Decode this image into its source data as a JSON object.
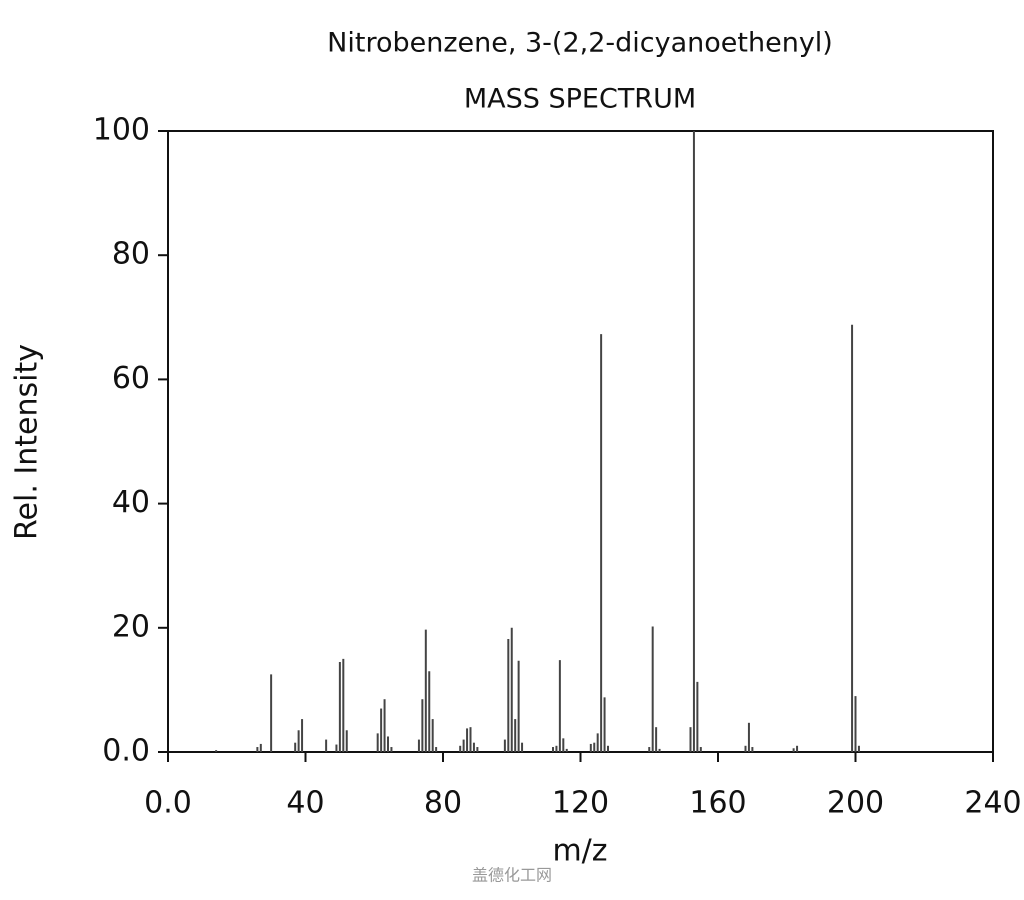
{
  "chart_data": {
    "type": "stem",
    "title": "Nitrobenzene, 3-(2,2-dicyanoethenyl)",
    "subtitle": "MASS SPECTRUM",
    "xlabel": "m/z",
    "ylabel": "Rel. Intensity",
    "watermark": "盖德化工网",
    "color": "#444444",
    "xlim": [
      0,
      240
    ],
    "ylim": [
      0,
      100
    ],
    "xticks": [
      {
        "value": 0,
        "label": "0.0"
      },
      40,
      80,
      120,
      160,
      200,
      240
    ],
    "yticks": [
      {
        "value": 0,
        "label": "0.0"
      },
      20,
      40,
      60,
      80,
      100
    ],
    "x": [
      14,
      26,
      27,
      30,
      37,
      38,
      39,
      46,
      49,
      50,
      51,
      52,
      61,
      62,
      63,
      64,
      65,
      73,
      74,
      75,
      76,
      77,
      78,
      85,
      86,
      87,
      88,
      89,
      90,
      98,
      99,
      100,
      101,
      102,
      103,
      112,
      113,
      114,
      115,
      116,
      123,
      124,
      125,
      126,
      127,
      128,
      140,
      141,
      142,
      143,
      152,
      153,
      154,
      155,
      168,
      169,
      170,
      182,
      183,
      199,
      200,
      201
    ],
    "values": [
      0.3,
      0.8,
      1.3,
      12.5,
      1.5,
      3.5,
      5.3,
      2,
      1.2,
      14.5,
      15,
      3.5,
      3,
      7,
      8.5,
      2.5,
      0.8,
      2,
      8.5,
      19.7,
      13,
      5.3,
      0.8,
      1,
      2,
      3.8,
      4,
      1.5,
      0.8,
      2,
      18.2,
      20,
      5.3,
      14.7,
      1.5,
      0.8,
      1,
      14.8,
      2.2,
      0.5,
      1.3,
      1.5,
      3,
      67.3,
      8.8,
      1,
      0.8,
      20.2,
      4,
      0.5,
      4,
      100,
      11.3,
      0.8,
      1,
      4.7,
      0.8,
      0.6,
      1,
      68.8,
      9,
      1
    ]
  }
}
